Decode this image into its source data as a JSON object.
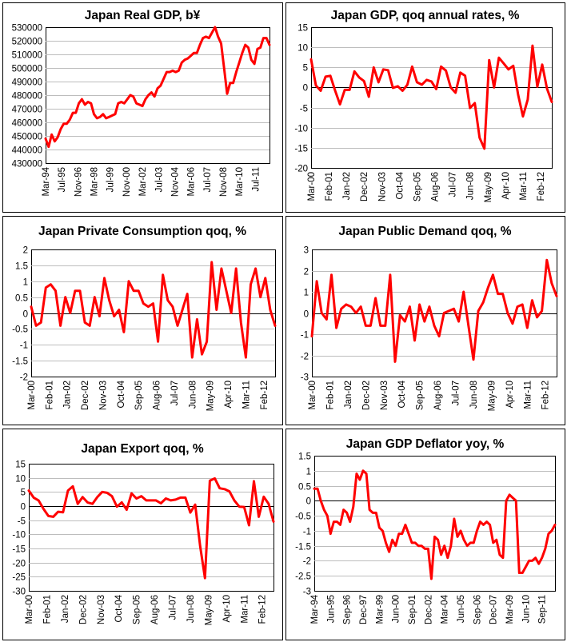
{
  "colors": {
    "series": "#ff0000",
    "grid": "#bdbdbd",
    "axis": "#000000"
  },
  "chart_data": [
    {
      "type": "line",
      "title": "Japan Real GDP, b¥",
      "ylim": [
        430000,
        530000
      ],
      "yticks": [
        "430000",
        "440000",
        "450000",
        "460000",
        "470000",
        "480000",
        "490000",
        "500000",
        "510000",
        "520000",
        "530000"
      ],
      "zero_line": false,
      "x_label_step_quarters": 5.333,
      "x_labels": [
        "Mar-94",
        "Jul-95",
        "Nov-96",
        "Mar-98",
        "Jul-99",
        "Nov-00",
        "Mar-02",
        "Jul-03",
        "Nov-04",
        "Mar-06",
        "Jul-07",
        "Nov-08",
        "Mar-10",
        "Jul-11"
      ],
      "values": [
        448000,
        442000,
        451000,
        446000,
        449000,
        455000,
        459000,
        459000,
        462000,
        467000,
        467000,
        474000,
        477000,
        473000,
        475000,
        474000,
        466000,
        463000,
        464000,
        466000,
        463000,
        464000,
        465000,
        466000,
        474000,
        475000,
        474000,
        477000,
        480000,
        479000,
        474000,
        473000,
        472000,
        477000,
        480000,
        482000,
        479000,
        485000,
        487000,
        492000,
        497000,
        497000,
        498000,
        497000,
        498000,
        504000,
        506000,
        507000,
        509000,
        511000,
        511000,
        517000,
        522000,
        523000,
        522000,
        526000,
        530000,
        523000,
        518000,
        500000,
        481000,
        489000,
        489000,
        497000,
        504000,
        511000,
        517000,
        515000,
        506000,
        503000,
        514000,
        515000,
        522000,
        522000,
        517000
      ]
    },
    {
      "type": "line",
      "title": "Japan GDP, qoq annual rates, %",
      "ylim": [
        -20,
        15
      ],
      "yticks": [
        "-20",
        "-15",
        "-10",
        "-5",
        "0",
        "5",
        "10",
        "15"
      ],
      "zero_line": true,
      "x_label_step_quarters": 3.667,
      "x_labels": [
        "Mar-00",
        "Feb-01",
        "Jan-02",
        "Dec-02",
        "Nov-03",
        "Oct-04",
        "Sep-05",
        "Aug-06",
        "Jul-07",
        "Jun-08",
        "May-09",
        "Apr-10",
        "Mar-11",
        "Feb-12"
      ],
      "values": [
        7,
        0.5,
        -0.8,
        2.7,
        2.9,
        -0.8,
        -4.2,
        -0.6,
        -0.6,
        4,
        2.5,
        1.6,
        -2.3,
        5,
        1.3,
        4.5,
        4.3,
        -0.1,
        0.3,
        -0.8,
        0.7,
        5.2,
        1.3,
        0.7,
        1.9,
        1.5,
        -0.4,
        5.2,
        4.2,
        0,
        -1.3,
        3.7,
        2.9,
        -5.1,
        -3.9,
        -12.5,
        -15.2,
        6.8,
        0,
        7.4,
        6,
        4.5,
        5.4,
        -1.8,
        -7.2,
        -3,
        10.4,
        0.2,
        5.7,
        -0.3,
        -3.6
      ]
    },
    {
      "type": "line",
      "title": "Japan Private Consumption qoq, %",
      "ylim": [
        -2,
        2
      ],
      "yticks": [
        "-2",
        "-1.5",
        "-1",
        "-0.5",
        "0",
        "0.5",
        "1",
        "1.5",
        "2"
      ],
      "zero_line": true,
      "x_label_step_quarters": 3.667,
      "x_labels": [
        "Mar-00",
        "Feb-01",
        "Jan-02",
        "Dec-02",
        "Nov-03",
        "Oct-04",
        "Sep-05",
        "Aug-06",
        "Jul-07",
        "Jun-08",
        "May-09",
        "Apr-10",
        "Mar-11",
        "Feb-12"
      ],
      "values": [
        0.2,
        -0.4,
        -0.3,
        0.8,
        0.9,
        0.7,
        -0.4,
        0.5,
        0,
        0.7,
        0.7,
        -0.3,
        -0.4,
        0.5,
        -0.1,
        1.1,
        0.4,
        -0.1,
        0.1,
        -0.6,
        1,
        0.7,
        0.7,
        0.3,
        0.2,
        0.3,
        -0.9,
        1.2,
        0.4,
        0.2,
        -0.4,
        0.1,
        0.6,
        -1.4,
        -0.2,
        -1.3,
        -0.9,
        1.6,
        0.1,
        1.4,
        0.7,
        0,
        1.4,
        -0.3,
        -1.4,
        0.9,
        1.4,
        0.5,
        1.1,
        0.1,
        -0.4
      ]
    },
    {
      "type": "line",
      "title": "Japan Public Demand qoq, %",
      "ylim": [
        -3,
        3
      ],
      "yticks": [
        "-3",
        "-2",
        "-1",
        "0",
        "1",
        "2",
        "3"
      ],
      "zero_line": true,
      "x_label_step_quarters": 3.667,
      "x_labels": [
        "Mar-00",
        "Feb-01",
        "Jan-02",
        "Dec-02",
        "Nov-03",
        "Oct-04",
        "Sep-05",
        "Aug-06",
        "Jul-07",
        "Jun-08",
        "May-09",
        "Apr-10",
        "Mar-11",
        "Feb-12"
      ],
      "values": [
        -1.1,
        1.5,
        0,
        -0.3,
        1.8,
        -0.7,
        0.2,
        0.4,
        0.3,
        0,
        0.3,
        -0.6,
        -0.6,
        0.7,
        -0.6,
        -0.6,
        1.8,
        -2.3,
        -0.1,
        -0.4,
        0.3,
        -1.3,
        0.4,
        -0.4,
        0.3,
        -0.6,
        -1.1,
        0,
        0.1,
        0.2,
        -0.4,
        1,
        -0.6,
        -2.2,
        0.1,
        0.5,
        1.2,
        1.8,
        0.9,
        0.9,
        0,
        -0.5,
        0.3,
        0.4,
        -0.7,
        0.6,
        -0.2,
        0.1,
        2.5,
        1.4,
        0.8
      ]
    },
    {
      "type": "line",
      "title": "Japan Export qoq, %",
      "ylim": [
        -30,
        15
      ],
      "yticks": [
        "-30",
        "-25",
        "-20",
        "-15",
        "-10",
        "-5",
        "0",
        "5",
        "10",
        "15"
      ],
      "zero_line": true,
      "x_label_step_quarters": 3.667,
      "x_labels": [
        "Mar-00",
        "Feb-01",
        "Jan-02",
        "Dec-02",
        "Nov-03",
        "Oct-04",
        "Sep-05",
        "Aug-06",
        "Jul-07",
        "Jun-08",
        "May-09",
        "Apr-10",
        "Mar-11",
        "Feb-12"
      ],
      "values": [
        5.5,
        3,
        2,
        -1,
        -3.5,
        -3.8,
        -2,
        -2.2,
        5.5,
        7,
        0.8,
        3.2,
        1.3,
        0.8,
        3.2,
        5,
        4.7,
        3.5,
        -0.2,
        1.3,
        -1.3,
        4.5,
        2.7,
        3.5,
        2,
        2,
        2,
        1,
        2.7,
        2,
        2.3,
        3,
        3,
        -2.3,
        0.5,
        -14,
        -25.5,
        9,
        9.8,
        6.3,
        6,
        5.2,
        2,
        -0.2,
        -0.3,
        -6.8,
        8.8,
        -3.8,
        3.3,
        0.8,
        -5.5
      ]
    },
    {
      "type": "line",
      "title": "Japan GDP Deflator yoy, %",
      "ylim": [
        -3,
        1.5
      ],
      "yticks": [
        "-3",
        "-2.5",
        "-2",
        "-1.5",
        "-1",
        "-0.5",
        "0",
        "0.5",
        "1",
        "1.5"
      ],
      "zero_line": true,
      "x_label_step_quarters": 5,
      "x_labels": [
        "Mar-94",
        "Jun-95",
        "Sep-96",
        "Dec-97",
        "Mar-99",
        "Jun-00",
        "Sep-01",
        "Dec-02",
        "Mar-04",
        "Jun-05",
        "Sep-06",
        "Dec-07",
        "Mar-09",
        "Jun-10",
        "Sep-11"
      ],
      "values": [
        0.4,
        0.4,
        0,
        -0.3,
        -0.5,
        -1.1,
        -0.7,
        -0.7,
        -0.8,
        -0.3,
        -0.4,
        -0.7,
        -0.2,
        0.9,
        0.7,
        1,
        0.9,
        -0.3,
        -0.4,
        -0.4,
        -0.9,
        -1,
        -1.4,
        -1.7,
        -1.3,
        -1.5,
        -1.1,
        -1.1,
        -0.8,
        -1.1,
        -1.4,
        -1.4,
        -1.5,
        -1.5,
        -1.6,
        -1.6,
        -2.6,
        -1.2,
        -1.3,
        -1.8,
        -1.5,
        -1.9,
        -1.5,
        -0.6,
        -1.2,
        -1,
        -1.3,
        -1.5,
        -1.4,
        -1.4,
        -1,
        -0.7,
        -0.8,
        -0.7,
        -0.8,
        -1.4,
        -1.3,
        -1.8,
        -1.9,
        0,
        0.2,
        0.1,
        0,
        -2.4,
        -2.4,
        -2.2,
        -2,
        -2,
        -1.9,
        -2.1,
        -1.9,
        -1.6,
        -1.1,
        -1,
        -0.8
      ]
    }
  ]
}
